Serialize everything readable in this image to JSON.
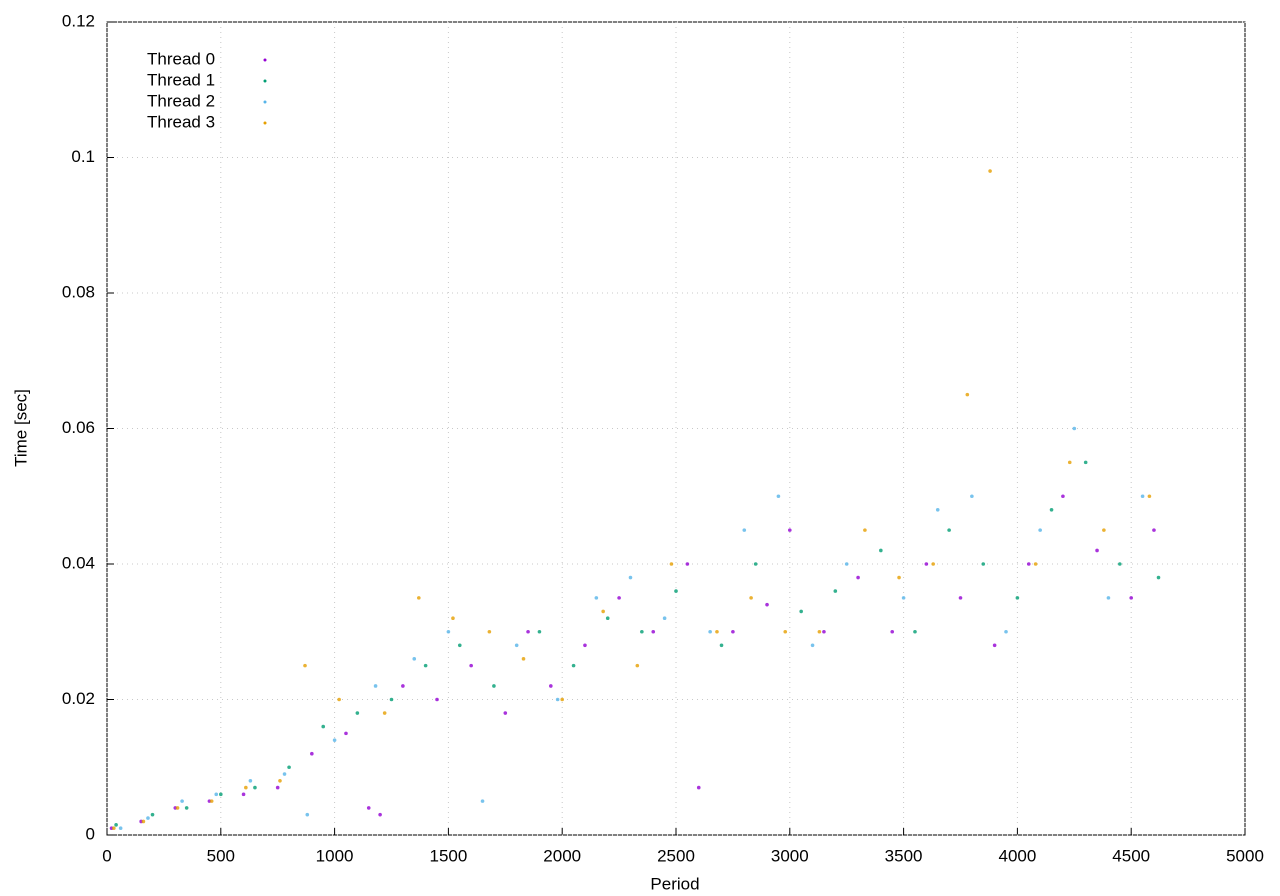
{
  "chart_data": {
    "type": "scatter",
    "x_label": "Period",
    "y_label": "Time [sec]",
    "xlim": [
      0,
      5000
    ],
    "ylim": [
      0,
      0.12
    ],
    "xticks": [
      0,
      500,
      1000,
      1500,
      2000,
      2500,
      3000,
      3500,
      4000,
      4500,
      5000
    ],
    "yticks": [
      0,
      0.02,
      0.04,
      0.06,
      0.08,
      0.1,
      0.12
    ],
    "grid": true,
    "legend": "top-left",
    "series": [
      {
        "name": "Thread 0",
        "color": "#9400d3",
        "x": [
          20,
          150,
          300,
          450,
          600,
          750,
          900,
          1050,
          1150,
          1200,
          1300,
          1450,
          1600,
          1750,
          1850,
          1950,
          2100,
          2250,
          2400,
          2550,
          2600,
          2750,
          2900,
          3000,
          3150,
          3300,
          3450,
          3600,
          3750,
          3900,
          4050,
          4200,
          4350,
          4500,
          4600
        ],
        "values": [
          0.001,
          0.002,
          0.004,
          0.005,
          0.006,
          0.007,
          0.012,
          0.015,
          0.004,
          0.003,
          0.022,
          0.02,
          0.025,
          0.018,
          0.03,
          0.022,
          0.028,
          0.035,
          0.03,
          0.04,
          0.007,
          0.03,
          0.034,
          0.045,
          0.03,
          0.038,
          0.03,
          0.04,
          0.035,
          0.028,
          0.04,
          0.05,
          0.042,
          0.035,
          0.045
        ]
      },
      {
        "name": "Thread 1",
        "color": "#009e73",
        "x": [
          40,
          200,
          350,
          500,
          650,
          800,
          950,
          1100,
          1250,
          1400,
          1550,
          1700,
          1900,
          2050,
          2200,
          2350,
          2500,
          2700,
          2850,
          3050,
          3200,
          3400,
          3550,
          3700,
          3850,
          4000,
          4150,
          4300,
          4450,
          4620
        ],
        "values": [
          0.0015,
          0.003,
          0.004,
          0.006,
          0.007,
          0.01,
          0.016,
          0.018,
          0.02,
          0.025,
          0.028,
          0.022,
          0.03,
          0.025,
          0.032,
          0.03,
          0.036,
          0.028,
          0.04,
          0.033,
          0.036,
          0.042,
          0.03,
          0.045,
          0.04,
          0.035,
          0.048,
          0.055,
          0.04,
          0.038
        ]
      },
      {
        "name": "Thread 2",
        "color": "#56b4e9",
        "x": [
          60,
          180,
          330,
          480,
          630,
          780,
          880,
          1000,
          1180,
          1350,
          1500,
          1650,
          1800,
          1980,
          2150,
          2300,
          2450,
          2650,
          2800,
          2950,
          3100,
          3250,
          3500,
          3650,
          3800,
          3950,
          4100,
          4250,
          4400,
          4550
        ],
        "values": [
          0.001,
          0.0025,
          0.005,
          0.006,
          0.008,
          0.009,
          0.003,
          0.014,
          0.022,
          0.026,
          0.03,
          0.005,
          0.028,
          0.02,
          0.035,
          0.038,
          0.032,
          0.03,
          0.045,
          0.05,
          0.028,
          0.04,
          0.035,
          0.048,
          0.05,
          0.03,
          0.045,
          0.06,
          0.035,
          0.05
        ]
      },
      {
        "name": "Thread 3",
        "color": "#e69f00",
        "x": [
          30,
          160,
          310,
          460,
          610,
          760,
          870,
          1020,
          1220,
          1370,
          1520,
          1680,
          1830,
          2000,
          2180,
          2330,
          2480,
          2680,
          2830,
          2980,
          3130,
          3330,
          3480,
          3630,
          3780,
          3880,
          4080,
          4230,
          4380,
          4580
        ],
        "values": [
          0.001,
          0.002,
          0.004,
          0.005,
          0.007,
          0.008,
          0.025,
          0.02,
          0.018,
          0.035,
          0.032,
          0.03,
          0.026,
          0.02,
          0.033,
          0.025,
          0.04,
          0.03,
          0.035,
          0.03,
          0.03,
          0.045,
          0.038,
          0.04,
          0.065,
          0.098,
          0.04,
          0.055,
          0.045,
          0.05
        ]
      }
    ]
  }
}
